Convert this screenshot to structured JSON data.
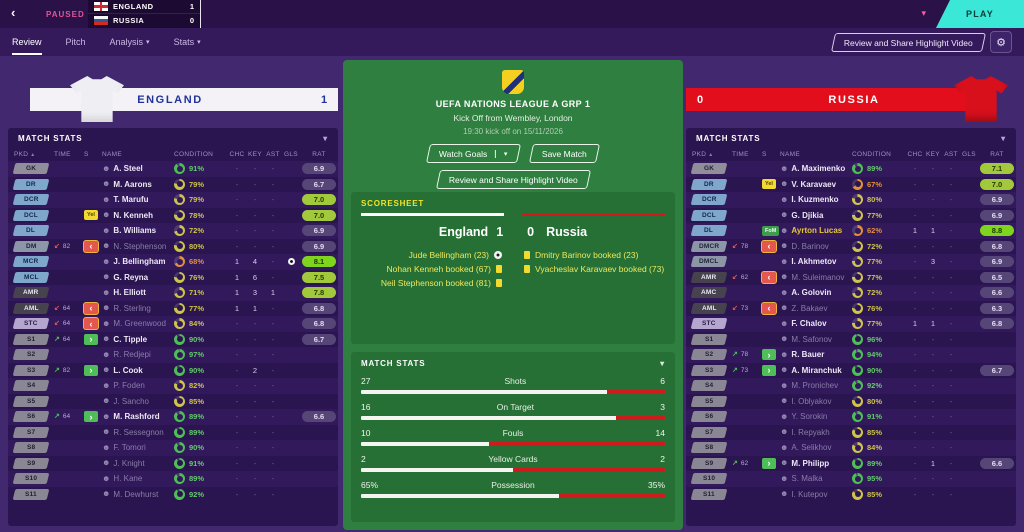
{
  "icons": {
    "back": "‹",
    "chevron_down": "▾",
    "sort_asc": "▲",
    "gear": "⚙",
    "face": "☻",
    "sub_off_arrow": "↙",
    "sub_on_arrow": "↗",
    "sub_off_box": "‹",
    "sub_on_box": "›"
  },
  "badges": {
    "yel": "Yel",
    "fom": "FoM"
  },
  "colors": {
    "play_button": "#3BE8D8",
    "home_banner": "#F4F2F7",
    "away_banner": "#E30E1B",
    "pitch_green": "#2F8040",
    "home_bar": "#FFFFFF",
    "away_bar": "#CF1B1B",
    "accent_pink": "#FF5FA2"
  },
  "topbar": {
    "paused": "PAUSED",
    "play_label": "PLAY",
    "scoreboard": {
      "home": {
        "team": "ENGLAND",
        "score": "1"
      },
      "away": {
        "team": "RUSSIA",
        "score": "0"
      }
    }
  },
  "tabs": {
    "items": [
      {
        "label": "Review"
      },
      {
        "label": "Pitch"
      },
      {
        "label": "Analysis"
      },
      {
        "label": "Stats"
      }
    ],
    "highlight_button": "Review and Share Highlight Video"
  },
  "center": {
    "competition": "UEFA NATIONS LEAGUE A GRP 1",
    "venue": "Kick Off from Wembley, London",
    "kickoff": "19:30 kick off on 15/11/2026",
    "watch_goals": "Watch Goals",
    "save_match": "Save Match",
    "highlight_button": "Review and Share Highlight Video",
    "scoresheet": {
      "title": "SCORESHEET",
      "home_team": "England",
      "home_score": "1",
      "away_score": "0",
      "away_team": "Russia",
      "home_events": [
        {
          "text": "Jude Bellingham (23)",
          "icon": "goal"
        },
        {
          "text": "Nohan Kenneh booked (67)",
          "icon": "card"
        },
        {
          "text": "Neil Stephenson booked (81)",
          "icon": "card"
        }
      ],
      "away_events": [
        {
          "text": "Dmitry Barinov booked (23)",
          "icon": "card"
        },
        {
          "text": "Vyacheslav Karavaev booked (73)",
          "icon": "card"
        }
      ]
    },
    "match_stats": {
      "title": "MATCH STATS",
      "rows": [
        {
          "label": "Shots",
          "home": "27",
          "away": "6",
          "home_pct": 81
        },
        {
          "label": "On Target",
          "home": "16",
          "away": "3",
          "home_pct": 84
        },
        {
          "label": "Fouls",
          "home": "10",
          "away": "14",
          "home_pct": 42
        },
        {
          "label": "Yellow Cards",
          "home": "2",
          "away": "2",
          "home_pct": 50
        },
        {
          "label": "Possession",
          "home": "65%",
          "away": "35%",
          "home_pct": 65
        }
      ]
    }
  },
  "team_table": {
    "section_title": "MATCH STATS",
    "columns": [
      "PKD",
      "TIME",
      "S",
      "NAME",
      "CONDITION",
      "CHC",
      "KEY",
      "AST",
      "GLS",
      "RAT"
    ]
  },
  "teams": [
    {
      "name": "ENGLAND",
      "score": "1",
      "players": [
        {
          "pkd": "GK",
          "pos": "gk",
          "sub": "",
          "time": "",
          "status": "",
          "name": "A. Steel",
          "active": true,
          "cond": 91,
          "condc": "green",
          "chc": "-",
          "key": "-",
          "ast": "-",
          "gls": "",
          "rat": "6.9",
          "ratt": "low"
        },
        {
          "pkd": "DR",
          "pos": "def",
          "sub": "",
          "time": "",
          "status": "",
          "name": "M. Aarons",
          "active": true,
          "cond": 79,
          "condc": "yellow",
          "chc": "-",
          "key": "-",
          "ast": "-",
          "gls": "",
          "rat": "6.7",
          "ratt": "low"
        },
        {
          "pkd": "DCR",
          "pos": "def",
          "sub": "",
          "time": "",
          "status": "",
          "name": "T. Marufu",
          "active": true,
          "cond": 79,
          "condc": "yellow",
          "chc": "-",
          "key": "-",
          "ast": "-",
          "gls": "",
          "rat": "7.0",
          "ratt": "good"
        },
        {
          "pkd": "DCL",
          "pos": "def",
          "sub": "",
          "time": "",
          "status": "yel",
          "name": "N. Kenneh",
          "active": true,
          "cond": 78,
          "condc": "yellow",
          "chc": "-",
          "key": "-",
          "ast": "-",
          "gls": "",
          "rat": "7.0",
          "ratt": "good"
        },
        {
          "pkd": "DL",
          "pos": "def",
          "sub": "",
          "time": "",
          "status": "",
          "name": "B. Williams",
          "active": true,
          "cond": 72,
          "condc": "yellow",
          "chc": "-",
          "key": "-",
          "ast": "-",
          "gls": "",
          "rat": "6.9",
          "ratt": "low"
        },
        {
          "pkd": "DM",
          "pos": "dm",
          "sub": "off",
          "time": "82",
          "status": "off",
          "name": "N. Stephenson",
          "active": false,
          "cond": 80,
          "condc": "yellow",
          "chc": "-",
          "key": "-",
          "ast": "-",
          "gls": "",
          "rat": "6.9",
          "ratt": "low"
        },
        {
          "pkd": "MCR",
          "pos": "mc",
          "sub": "",
          "time": "",
          "status": "",
          "name": "J. Bellingham",
          "active": true,
          "cond": 68,
          "condc": "orange",
          "chc": "1",
          "key": "4",
          "ast": "-",
          "gls": "goal",
          "rat": "8.1",
          "ratt": "great"
        },
        {
          "pkd": "MCL",
          "pos": "mc",
          "sub": "",
          "time": "",
          "status": "",
          "name": "G. Reyna",
          "active": true,
          "cond": 76,
          "condc": "yellow",
          "chc": "1",
          "key": "6",
          "ast": "-",
          "gls": "",
          "rat": "7.5",
          "ratt": "good"
        },
        {
          "pkd": "AMR",
          "pos": "am",
          "sub": "",
          "time": "",
          "status": "",
          "name": "H. Elliott",
          "active": true,
          "cond": 71,
          "condc": "yellow",
          "chc": "1",
          "key": "3",
          "ast": "1",
          "gls": "",
          "rat": "7.8",
          "ratt": "good"
        },
        {
          "pkd": "AML",
          "pos": "am",
          "sub": "off",
          "time": "64",
          "status": "off",
          "name": "R. Sterling",
          "active": false,
          "cond": 77,
          "condc": "yellow",
          "chc": "1",
          "key": "1",
          "ast": "-",
          "gls": "",
          "rat": "6.8",
          "ratt": "low"
        },
        {
          "pkd": "STC",
          "pos": "stc",
          "sub": "off",
          "time": "64",
          "status": "off",
          "name": "M. Greenwood",
          "active": false,
          "cond": 84,
          "condc": "yellow",
          "chc": "-",
          "key": "-",
          "ast": "-",
          "gls": "",
          "rat": "6.8",
          "ratt": "low"
        },
        {
          "pkd": "S1",
          "pos": "sub",
          "sub": "on",
          "time": "64",
          "status": "on",
          "name": "C. Tipple",
          "active": true,
          "cond": 90,
          "condc": "green",
          "chc": "-",
          "key": "-",
          "ast": "-",
          "gls": "",
          "rat": "6.7",
          "ratt": "low"
        },
        {
          "pkd": "S2",
          "pos": "sub",
          "sub": "",
          "time": "",
          "status": "",
          "name": "R. Redjepi",
          "active": false,
          "cond": 97,
          "condc": "green",
          "chc": "-",
          "key": "-",
          "ast": "-",
          "gls": "",
          "rat": "",
          "ratt": ""
        },
        {
          "pkd": "S3",
          "pos": "sub",
          "sub": "on",
          "time": "82",
          "status": "on",
          "name": "L. Cook",
          "active": true,
          "cond": 90,
          "condc": "green",
          "chc": "-",
          "key": "2",
          "ast": "-",
          "gls": "",
          "rat": "",
          "ratt": ""
        },
        {
          "pkd": "S4",
          "pos": "sub",
          "sub": "",
          "time": "",
          "status": "",
          "name": "P. Foden",
          "active": false,
          "cond": 82,
          "condc": "yellow",
          "chc": "-",
          "key": "-",
          "ast": "-",
          "gls": "",
          "rat": "",
          "ratt": ""
        },
        {
          "pkd": "S5",
          "pos": "sub",
          "sub": "",
          "time": "",
          "status": "",
          "name": "J. Sancho",
          "active": false,
          "cond": 85,
          "condc": "yellow",
          "chc": "-",
          "key": "-",
          "ast": "-",
          "gls": "",
          "rat": "",
          "ratt": ""
        },
        {
          "pkd": "S6",
          "pos": "sub",
          "sub": "on",
          "time": "64",
          "status": "on",
          "name": "M. Rashford",
          "active": true,
          "cond": 89,
          "condc": "green",
          "chc": "-",
          "key": "-",
          "ast": "-",
          "gls": "",
          "rat": "6.6",
          "ratt": "low"
        },
        {
          "pkd": "S7",
          "pos": "sub",
          "sub": "",
          "time": "",
          "status": "",
          "name": "R. Sessegnon",
          "active": false,
          "cond": 89,
          "condc": "green",
          "chc": "-",
          "key": "-",
          "ast": "-",
          "gls": "",
          "rat": "",
          "ratt": ""
        },
        {
          "pkd": "S8",
          "pos": "sub",
          "sub": "",
          "time": "",
          "status": "",
          "name": "F. Tomori",
          "active": false,
          "cond": 90,
          "condc": "green",
          "chc": "-",
          "key": "-",
          "ast": "-",
          "gls": "",
          "rat": "",
          "ratt": ""
        },
        {
          "pkd": "S9",
          "pos": "sub",
          "sub": "",
          "time": "",
          "status": "",
          "name": "J. Knight",
          "active": false,
          "cond": 91,
          "condc": "green",
          "chc": "-",
          "key": "-",
          "ast": "-",
          "gls": "",
          "rat": "",
          "ratt": ""
        },
        {
          "pkd": "S10",
          "pos": "sub",
          "sub": "",
          "time": "",
          "status": "",
          "name": "H. Kane",
          "active": false,
          "cond": 89,
          "condc": "green",
          "chc": "-",
          "key": "-",
          "ast": "-",
          "gls": "",
          "rat": "",
          "ratt": ""
        },
        {
          "pkd": "S11",
          "pos": "sub",
          "sub": "",
          "time": "",
          "status": "",
          "name": "M. Dewhurst",
          "active": false,
          "cond": 92,
          "condc": "green",
          "chc": "-",
          "key": "-",
          "ast": "-",
          "gls": "",
          "rat": "",
          "ratt": ""
        }
      ]
    },
    {
      "name": "RUSSIA",
      "score": "0",
      "players": [
        {
          "pkd": "GK",
          "pos": "gk",
          "sub": "",
          "time": "",
          "status": "",
          "name": "A. Maximenko",
          "active": true,
          "cond": 89,
          "condc": "green",
          "chc": "-",
          "key": "-",
          "ast": "-",
          "gls": "",
          "rat": "7.1",
          "ratt": "good"
        },
        {
          "pkd": "DR",
          "pos": "def",
          "sub": "",
          "time": "",
          "status": "yel",
          "name": "V. Karavaev",
          "active": true,
          "cond": 67,
          "condc": "orange",
          "chc": "-",
          "key": "-",
          "ast": "-",
          "gls": "",
          "rat": "7.0",
          "ratt": "good"
        },
        {
          "pkd": "DCR",
          "pos": "def",
          "sub": "",
          "time": "",
          "status": "",
          "name": "I. Kuzmenko",
          "active": true,
          "cond": 80,
          "condc": "yellow",
          "chc": "-",
          "key": "-",
          "ast": "-",
          "gls": "",
          "rat": "6.9",
          "ratt": "low"
        },
        {
          "pkd": "DCL",
          "pos": "def",
          "sub": "",
          "time": "",
          "status": "",
          "name": "G. Djikia",
          "active": true,
          "cond": 77,
          "condc": "yellow",
          "chc": "-",
          "key": "-",
          "ast": "-",
          "gls": "",
          "rat": "6.9",
          "ratt": "low"
        },
        {
          "pkd": "DL",
          "pos": "def",
          "sub": "",
          "time": "",
          "status": "fom",
          "name": "Ayrton Lucas",
          "active": true,
          "gold": true,
          "cond": 62,
          "condc": "orange",
          "chc": "1",
          "key": "1",
          "ast": "-",
          "gls": "",
          "rat": "8.8",
          "ratt": "great"
        },
        {
          "pkd": "DMCR",
          "pos": "dm",
          "sub": "off",
          "time": "78",
          "status": "off",
          "name": "D. Barinov",
          "active": false,
          "cond": 72,
          "condc": "yellow",
          "chc": "-",
          "key": "-",
          "ast": "-",
          "gls": "",
          "rat": "6.8",
          "ratt": "low"
        },
        {
          "pkd": "DMCL",
          "pos": "dm",
          "sub": "",
          "time": "",
          "status": "",
          "name": "I. Akhmetov",
          "active": true,
          "cond": 77,
          "condc": "yellow",
          "chc": "-",
          "key": "3",
          "ast": "-",
          "gls": "",
          "rat": "6.9",
          "ratt": "low"
        },
        {
          "pkd": "AMR",
          "pos": "am",
          "sub": "off",
          "time": "62",
          "status": "off",
          "name": "M. Suleimanov",
          "active": false,
          "cond": 77,
          "condc": "yellow",
          "chc": "-",
          "key": "-",
          "ast": "-",
          "gls": "",
          "rat": "6.5",
          "ratt": "low"
        },
        {
          "pkd": "AMC",
          "pos": "am",
          "sub": "",
          "time": "",
          "status": "",
          "name": "A. Golovin",
          "active": true,
          "cond": 72,
          "condc": "yellow",
          "chc": "-",
          "key": "-",
          "ast": "-",
          "gls": "",
          "rat": "6.6",
          "ratt": "low"
        },
        {
          "pkd": "AML",
          "pos": "am",
          "sub": "off",
          "time": "73",
          "status": "off",
          "name": "Z. Bakaev",
          "active": false,
          "cond": 76,
          "condc": "yellow",
          "chc": "-",
          "key": "-",
          "ast": "-",
          "gls": "",
          "rat": "6.3",
          "ratt": "low"
        },
        {
          "pkd": "STC",
          "pos": "stc",
          "sub": "",
          "time": "",
          "status": "",
          "name": "F. Chalov",
          "active": true,
          "cond": 77,
          "condc": "yellow",
          "chc": "1",
          "key": "1",
          "ast": "-",
          "gls": "",
          "rat": "6.8",
          "ratt": "low"
        },
        {
          "pkd": "S1",
          "pos": "sub",
          "sub": "",
          "time": "",
          "status": "",
          "name": "M. Safonov",
          "active": false,
          "cond": 96,
          "condc": "green",
          "chc": "-",
          "key": "-",
          "ast": "-",
          "gls": "",
          "rat": "",
          "ratt": ""
        },
        {
          "pkd": "S2",
          "pos": "sub",
          "sub": "on",
          "time": "78",
          "status": "on",
          "name": "R. Bauer",
          "active": true,
          "cond": 94,
          "condc": "green",
          "chc": "-",
          "key": "-",
          "ast": "-",
          "gls": "",
          "rat": "",
          "ratt": ""
        },
        {
          "pkd": "S3",
          "pos": "sub",
          "sub": "on",
          "time": "73",
          "status": "on",
          "name": "A. Miranchuk",
          "active": true,
          "cond": 90,
          "condc": "green",
          "chc": "-",
          "key": "-",
          "ast": "-",
          "gls": "",
          "rat": "6.7",
          "ratt": "low"
        },
        {
          "pkd": "S4",
          "pos": "sub",
          "sub": "",
          "time": "",
          "status": "",
          "name": "M. Pronichev",
          "active": false,
          "cond": 92,
          "condc": "green",
          "chc": "-",
          "key": "-",
          "ast": "-",
          "gls": "",
          "rat": "",
          "ratt": ""
        },
        {
          "pkd": "S5",
          "pos": "sub",
          "sub": "",
          "time": "",
          "status": "",
          "name": "I. Oblyakov",
          "active": false,
          "cond": 80,
          "condc": "yellow",
          "chc": "-",
          "key": "-",
          "ast": "-",
          "gls": "",
          "rat": "",
          "ratt": ""
        },
        {
          "pkd": "S6",
          "pos": "sub",
          "sub": "",
          "time": "",
          "status": "",
          "name": "Y. Sorokin",
          "active": false,
          "cond": 91,
          "condc": "green",
          "chc": "-",
          "key": "-",
          "ast": "-",
          "gls": "",
          "rat": "",
          "ratt": ""
        },
        {
          "pkd": "S7",
          "pos": "sub",
          "sub": "",
          "time": "",
          "status": "",
          "name": "I. Repyakh",
          "active": false,
          "cond": 85,
          "condc": "yellow",
          "chc": "-",
          "key": "-",
          "ast": "-",
          "gls": "",
          "rat": "",
          "ratt": ""
        },
        {
          "pkd": "S8",
          "pos": "sub",
          "sub": "",
          "time": "",
          "status": "",
          "name": "A. Selikhov",
          "active": false,
          "cond": 84,
          "condc": "yellow",
          "chc": "-",
          "key": "-",
          "ast": "-",
          "gls": "",
          "rat": "",
          "ratt": ""
        },
        {
          "pkd": "S9",
          "pos": "sub",
          "sub": "on",
          "time": "62",
          "status": "on",
          "name": "M. Philipp",
          "active": true,
          "cond": 89,
          "condc": "green",
          "chc": "-",
          "key": "1",
          "ast": "-",
          "gls": "",
          "rat": "6.6",
          "ratt": "low"
        },
        {
          "pkd": "S10",
          "pos": "sub",
          "sub": "",
          "time": "",
          "status": "",
          "name": "S. Malka",
          "active": false,
          "cond": 95,
          "condc": "green",
          "chc": "-",
          "key": "-",
          "ast": "-",
          "gls": "",
          "rat": "",
          "ratt": ""
        },
        {
          "pkd": "S11",
          "pos": "sub",
          "sub": "",
          "time": "",
          "status": "",
          "name": "I. Kutepov",
          "active": false,
          "cond": 85,
          "condc": "yellow",
          "chc": "-",
          "key": "-",
          "ast": "-",
          "gls": "",
          "rat": "",
          "ratt": ""
        }
      ]
    }
  ]
}
